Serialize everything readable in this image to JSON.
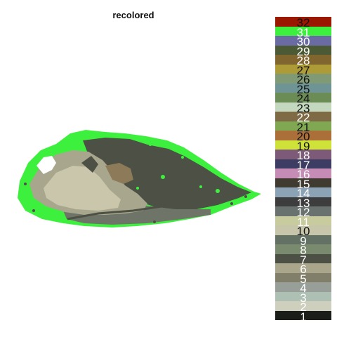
{
  "title": "recolored",
  "image": {
    "content": "recolored specimen image",
    "colors": {
      "green": "#3ef03e",
      "dark": "#4d5044",
      "tan": "#a8a68c",
      "light": "#c9c6ac",
      "brown": "#8c7a58",
      "gray": "#6e7468"
    }
  },
  "legend": {
    "items": [
      {
        "label": "32",
        "color": "#9a1800",
        "text": "dark"
      },
      {
        "label": "31",
        "color": "#3ef03e",
        "text": "light"
      },
      {
        "label": "30",
        "color": "#6a6ba2",
        "text": "light"
      },
      {
        "label": "29",
        "color": "#4b5a34",
        "text": "light"
      },
      {
        "label": "28",
        "color": "#81652e",
        "text": "light"
      },
      {
        "label": "27",
        "color": "#ad9b37",
        "text": "dark"
      },
      {
        "label": "26",
        "color": "#7f9a74",
        "text": "dark"
      },
      {
        "label": "25",
        "color": "#6f9495",
        "text": "dark"
      },
      {
        "label": "24",
        "color": "#6c8c56",
        "text": "dark"
      },
      {
        "label": "23",
        "color": "#c3d8be",
        "text": "dark"
      },
      {
        "label": "22",
        "color": "#7e6a45",
        "text": "light"
      },
      {
        "label": "21",
        "color": "#80a852",
        "text": "dark"
      },
      {
        "label": "20",
        "color": "#ab703a",
        "text": "dark"
      },
      {
        "label": "19",
        "color": "#cfe23a",
        "text": "dark"
      },
      {
        "label": "18",
        "color": "#7d5b78",
        "text": "light"
      },
      {
        "label": "17",
        "color": "#3d3d64",
        "text": "light"
      },
      {
        "label": "16",
        "color": "#c58cb6",
        "text": "light"
      },
      {
        "label": "15",
        "color": "#3f3b31",
        "text": "light"
      },
      {
        "label": "14",
        "color": "#8ca3b5",
        "text": "light"
      },
      {
        "label": "13",
        "color": "#3c3d3c",
        "text": "light"
      },
      {
        "label": "12",
        "color": "#69726e",
        "text": "light"
      },
      {
        "label": "11",
        "color": "#c7cb9d",
        "text": "light"
      },
      {
        "label": "10",
        "color": "#c7c6ab",
        "text": "dark"
      },
      {
        "label": "9",
        "color": "#627164",
        "text": "light"
      },
      {
        "label": "8",
        "color": "#7a8a6f",
        "text": "light"
      },
      {
        "label": "7",
        "color": "#4d5044",
        "text": "light"
      },
      {
        "label": "6",
        "color": "#a9a68c",
        "text": "light"
      },
      {
        "label": "5",
        "color": "#817e69",
        "text": "light"
      },
      {
        "label": "4",
        "color": "#979f98",
        "text": "light"
      },
      {
        "label": "3",
        "color": "#aebfb3",
        "text": "light"
      },
      {
        "label": "2",
        "color": "#cfcfbe",
        "text": "light"
      },
      {
        "label": "1",
        "color": "#1b1d18",
        "text": "light"
      }
    ]
  }
}
